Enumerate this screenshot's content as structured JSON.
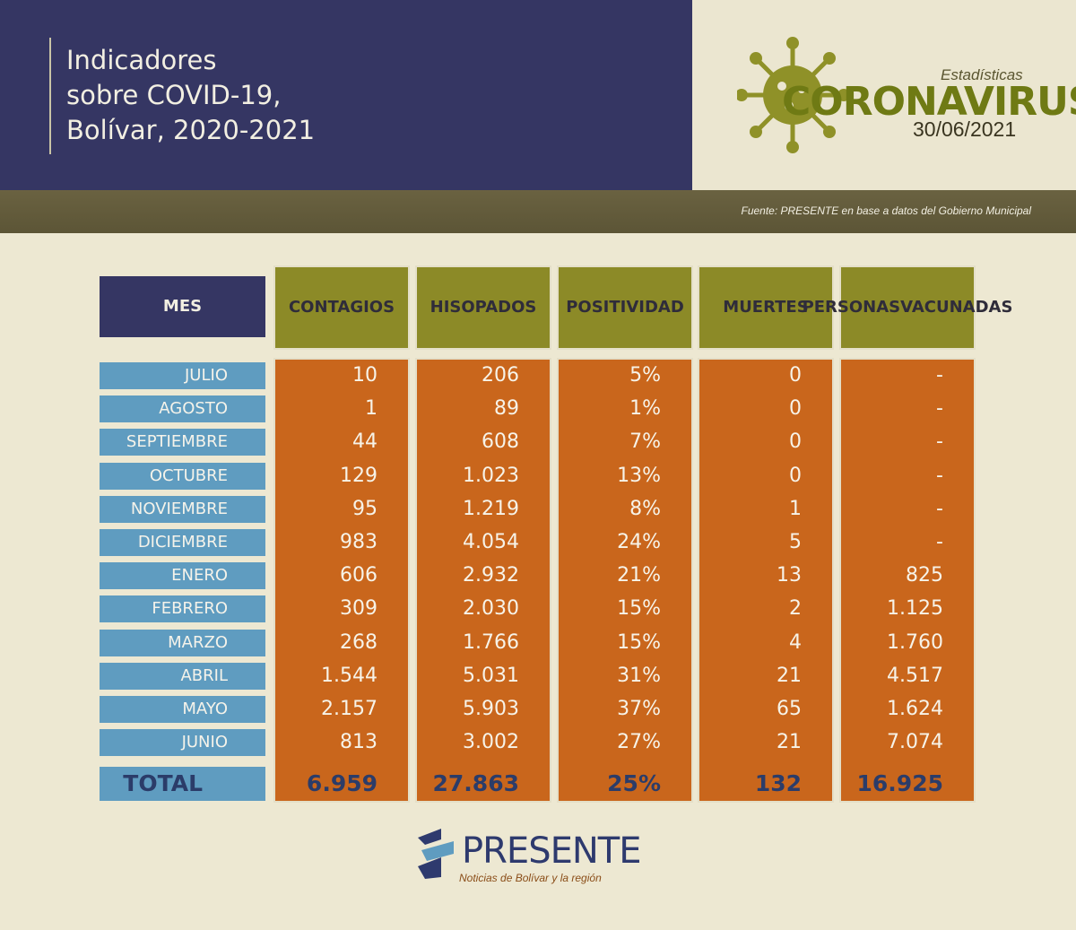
{
  "header": {
    "title_lines": [
      "Indicadores",
      "sobre COVID-19,",
      "Bolívar, 2020-2021"
    ],
    "badge_small": "Estadísticas",
    "badge_big": "CORONAVIRUS",
    "date": "30/06/2021"
  },
  "source": "Fuente: PRESENTE en base a datos del Gobierno Municipal",
  "colors": {
    "header_bg": "#353663",
    "column_header": "#8c8a27",
    "cell_orange": "#c9661c",
    "month_blue": "#5f9cc0",
    "virus_green": "#8f9128"
  },
  "chart_data": {
    "type": "table",
    "columns": [
      "MES",
      "CONTAGIOS",
      "HISOPADOS",
      "POSITIVIDAD",
      "MUERTES",
      "PERSONAS VACUNADAS"
    ],
    "column_labels": [
      [
        "MES"
      ],
      [
        "CONTAGIOS"
      ],
      [
        "HISOPADOS"
      ],
      [
        "POSITIVIDAD"
      ],
      [
        "MUERTES"
      ],
      [
        "PERSONAS",
        "VACUNADAS"
      ]
    ],
    "rows": [
      [
        "JULIO",
        "10",
        "206",
        "5%",
        "0",
        "-"
      ],
      [
        "AGOSTO",
        "1",
        "89",
        "1%",
        "0",
        "-"
      ],
      [
        "SEPTIEMBRE",
        "44",
        "608",
        "7%",
        "0",
        "-"
      ],
      [
        "OCTUBRE",
        "129",
        "1.023",
        "13%",
        "0",
        "-"
      ],
      [
        "NOVIEMBRE",
        "95",
        "1.219",
        "8%",
        "1",
        "-"
      ],
      [
        "DICIEMBRE",
        "983",
        "4.054",
        "24%",
        "5",
        "-"
      ],
      [
        "ENERO",
        "606",
        "2.932",
        "21%",
        "13",
        "825"
      ],
      [
        "FEBRERO",
        "309",
        "2.030",
        "15%",
        "2",
        "1.125"
      ],
      [
        "MARZO",
        "268",
        "1.766",
        "15%",
        "4",
        "1.760"
      ],
      [
        "ABRIL",
        "1.544",
        "5.031",
        "31%",
        "21",
        "4.517"
      ],
      [
        "MAYO",
        "2.157",
        "5.903",
        "37%",
        "65",
        "1.624"
      ],
      [
        "JUNIO",
        "813",
        "3.002",
        "27%",
        "21",
        "7.074"
      ]
    ],
    "total": [
      "TOTAL",
      "6.959",
      "27.863",
      "25%",
      "132",
      "16.925"
    ]
  },
  "logo": {
    "name": "PRESENTE",
    "tagline": "Noticias de Bolívar y la región"
  }
}
